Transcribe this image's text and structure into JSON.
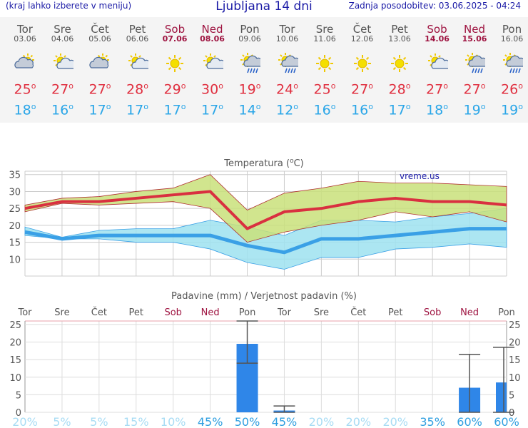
{
  "header": {
    "left_note": "(kraj lahko izberete v meniju)",
    "title": "Ljubljana 14 dni",
    "updated": "Zadnja posodobitev: 03.06.2025 - 04:24"
  },
  "days": [
    {
      "name": "Tor",
      "date": "03.06",
      "weekend": false,
      "icon": "partly-cloudy-icon",
      "tmax": "25",
      "tmin": "18"
    },
    {
      "name": "Sre",
      "date": "04.06",
      "weekend": false,
      "icon": "sun-cloud-icon",
      "tmax": "27",
      "tmin": "16"
    },
    {
      "name": "Čet",
      "date": "05.06",
      "weekend": false,
      "icon": "partly-cloudy-icon",
      "tmax": "27",
      "tmin": "17"
    },
    {
      "name": "Pet",
      "date": "06.06",
      "weekend": false,
      "icon": "sun-cloud-icon",
      "tmax": "28",
      "tmin": "17"
    },
    {
      "name": "Sob",
      "date": "07.06",
      "weekend": true,
      "icon": "sun-icon",
      "tmax": "29",
      "tmin": "17"
    },
    {
      "name": "Ned",
      "date": "08.06",
      "weekend": true,
      "icon": "sun-cloud-icon",
      "tmax": "30",
      "tmin": "17"
    },
    {
      "name": "Pon",
      "date": "09.06",
      "weekend": false,
      "icon": "sun-rain-icon",
      "tmax": "19",
      "tmin": "14"
    },
    {
      "name": "Tor",
      "date": "10.06",
      "weekend": false,
      "icon": "sun-rain-icon",
      "tmax": "24",
      "tmin": "12"
    },
    {
      "name": "Sre",
      "date": "11.06",
      "weekend": false,
      "icon": "sun-icon",
      "tmax": "25",
      "tmin": "16"
    },
    {
      "name": "Čet",
      "date": "12.06",
      "weekend": false,
      "icon": "sun-icon",
      "tmax": "27",
      "tmin": "16"
    },
    {
      "name": "Pet",
      "date": "13.06",
      "weekend": false,
      "icon": "sun-icon",
      "tmax": "28",
      "tmin": "17"
    },
    {
      "name": "Sob",
      "date": "14.06",
      "weekend": true,
      "icon": "sun-cloud-icon",
      "tmax": "27",
      "tmin": "18"
    },
    {
      "name": "Ned",
      "date": "15.06",
      "weekend": true,
      "icon": "sun-rain-icon",
      "tmax": "27",
      "tmin": "19"
    },
    {
      "name": "Pon",
      "date": "16.06",
      "weekend": false,
      "icon": "sun-rain-icon",
      "tmax": "26",
      "tmin": "19"
    }
  ],
  "degree_symbol": "o",
  "colors": {
    "header_text": "#1a1aa6",
    "max_line": "#d93040",
    "min_line": "#3aa0e6",
    "max_band": "#c9e07a",
    "min_band": "#9ee2f0",
    "bar": "#2f86e8",
    "weekend": "#9e1340",
    "prob_high": "#2f9fe0",
    "prob_low": "#a8dcf4"
  },
  "chart_data": [
    {
      "type": "line",
      "title": "Temperatura (",
      "title_unit": "C)",
      "watermark": "vreme.us",
      "categories": [
        "Tor",
        "Sre",
        "Čet",
        "Pet",
        "Sob",
        "Ned",
        "Pon",
        "Tor",
        "Sre",
        "Čet",
        "Pet",
        "Sob",
        "Ned",
        "Pon"
      ],
      "ylim": [
        5,
        36
      ],
      "yticks": [
        "10",
        "15",
        "20",
        "25",
        "30",
        "35"
      ],
      "grid": true,
      "series": [
        {
          "role": "max",
          "values": [
            25,
            27,
            27,
            28,
            29,
            30,
            19,
            24,
            25,
            27,
            28,
            27,
            27,
            26
          ]
        },
        {
          "role": "min",
          "values": [
            18,
            16,
            17,
            17,
            17,
            17,
            14,
            12,
            16,
            16,
            17,
            18,
            19,
            19
          ]
        }
      ],
      "max_band_low": [
        24,
        26.5,
        26,
        26.5,
        27,
        25,
        15,
        18,
        20,
        21.5,
        24,
        22.5,
        24,
        21
      ],
      "max_band_high": [
        26,
        28,
        28.5,
        30,
        31,
        35,
        24.5,
        29.5,
        31,
        33,
        32.5,
        32.5,
        32,
        31.5
      ],
      "min_band_low": [
        17,
        16,
        16,
        15,
        15,
        13,
        9,
        7,
        10.5,
        10.5,
        13,
        13.5,
        14.5,
        13.5
      ],
      "min_band_high": [
        19.5,
        16.5,
        18.5,
        19,
        19,
        21.5,
        19.5,
        17,
        21.5,
        21.5,
        21,
        22.5,
        23.5,
        25
      ]
    },
    {
      "type": "bar",
      "title": "Padavine (mm) / Verjetnost padavin (%)",
      "categories": [
        "Tor",
        "Sre",
        "Čet",
        "Pet",
        "Sob",
        "Ned",
        "Pon",
        "Tor",
        "Sre",
        "Čet",
        "Pet",
        "Sob",
        "Ned",
        "Pon"
      ],
      "ylim": [
        0,
        26
      ],
      "yticks": [
        "0",
        "5",
        "10",
        "15",
        "20",
        "25"
      ],
      "values": [
        0,
        0,
        0,
        0,
        0,
        0,
        19.5,
        0.5,
        0,
        0,
        0,
        0,
        7,
        8.5
      ],
      "error_low": [
        null,
        null,
        null,
        null,
        null,
        null,
        14,
        0,
        null,
        null,
        null,
        null,
        0,
        0
      ],
      "error_high": [
        null,
        null,
        null,
        null,
        null,
        null,
        26,
        1.8,
        null,
        null,
        null,
        null,
        16.5,
        18.5
      ],
      "probabilities": [
        "20%",
        "5%",
        "5%",
        "15%",
        "10%",
        "45%",
        "50%",
        "45%",
        "20%",
        "20%",
        "20%",
        "35%",
        "60%",
        "60%"
      ]
    }
  ]
}
